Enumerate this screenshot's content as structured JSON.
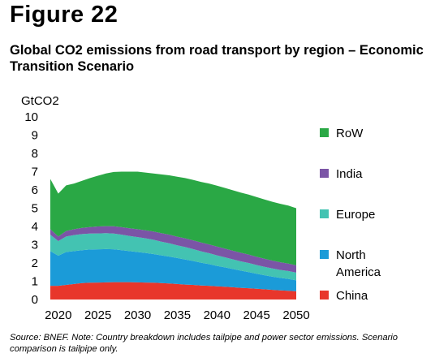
{
  "figure_label": "Figure 22",
  "source_note": "Source: BNEF. Note: Country breakdown includes tailpipe and power sector emissions. Scenario comparison is tailpipe only.",
  "colors": {
    "China": "#e8362b",
    "North America": "#1b9bd8",
    "Europe": "#43c3b2",
    "India": "#7b55a6",
    "RoW": "#2aa845"
  },
  "chart_data": {
    "type": "area",
    "stacked": true,
    "title": "Global CO2 emissions from road transport by region – Economic Transition Scenario",
    "ylabel": "GtCO2",
    "xlabel": "",
    "ylim": [
      0,
      10
    ],
    "yticks": [
      0,
      1,
      2,
      3,
      4,
      5,
      6,
      7,
      8,
      9,
      10
    ],
    "xticks": [
      2020,
      2025,
      2030,
      2035,
      2040,
      2045,
      2050
    ],
    "grid": false,
    "legend_position": "right",
    "x": [
      2019,
      2020,
      2021,
      2022,
      2023,
      2024,
      2025,
      2026,
      2027,
      2028,
      2029,
      2030,
      2031,
      2032,
      2033,
      2034,
      2035,
      2036,
      2037,
      2038,
      2039,
      2040,
      2041,
      2042,
      2043,
      2044,
      2045,
      2046,
      2047,
      2048,
      2049,
      2050
    ],
    "series": [
      {
        "name": "China",
        "values": [
          0.75,
          0.75,
          0.8,
          0.85,
          0.9,
          0.92,
          0.93,
          0.94,
          0.95,
          0.95,
          0.95,
          0.94,
          0.93,
          0.92,
          0.9,
          0.88,
          0.85,
          0.82,
          0.8,
          0.77,
          0.75,
          0.72,
          0.7,
          0.67,
          0.64,
          0.62,
          0.59,
          0.56,
          0.53,
          0.5,
          0.48,
          0.45
        ]
      },
      {
        "name": "North America",
        "values": [
          1.9,
          1.65,
          1.8,
          1.8,
          1.8,
          1.82,
          1.82,
          1.82,
          1.8,
          1.75,
          1.7,
          1.66,
          1.62,
          1.57,
          1.52,
          1.47,
          1.42,
          1.37,
          1.31,
          1.25,
          1.19,
          1.12,
          1.06,
          1.0,
          0.94,
          0.88,
          0.82,
          0.77,
          0.72,
          0.68,
          0.65,
          0.6
        ]
      },
      {
        "name": "Europe",
        "values": [
          0.9,
          0.8,
          0.85,
          0.88,
          0.88,
          0.87,
          0.87,
          0.87,
          0.86,
          0.85,
          0.83,
          0.82,
          0.8,
          0.78,
          0.75,
          0.73,
          0.7,
          0.68,
          0.65,
          0.62,
          0.6,
          0.58,
          0.55,
          0.53,
          0.51,
          0.5,
          0.48,
          0.46,
          0.45,
          0.44,
          0.43,
          0.42
        ]
      },
      {
        "name": "India",
        "values": [
          0.3,
          0.25,
          0.3,
          0.32,
          0.34,
          0.36,
          0.38,
          0.39,
          0.4,
          0.41,
          0.42,
          0.43,
          0.44,
          0.45,
          0.46,
          0.47,
          0.47,
          0.48,
          0.48,
          0.48,
          0.48,
          0.48,
          0.48,
          0.47,
          0.47,
          0.46,
          0.45,
          0.44,
          0.43,
          0.42,
          0.41,
          0.4
        ]
      },
      {
        "name": "RoW",
        "values": [
          2.75,
          2.35,
          2.5,
          2.5,
          2.58,
          2.68,
          2.78,
          2.88,
          2.97,
          3.04,
          3.1,
          3.15,
          3.16,
          3.18,
          3.22,
          3.25,
          3.28,
          3.3,
          3.31,
          3.32,
          3.33,
          3.33,
          3.32,
          3.31,
          3.3,
          3.28,
          3.27,
          3.25,
          3.22,
          3.2,
          3.17,
          3.13
        ]
      }
    ]
  }
}
